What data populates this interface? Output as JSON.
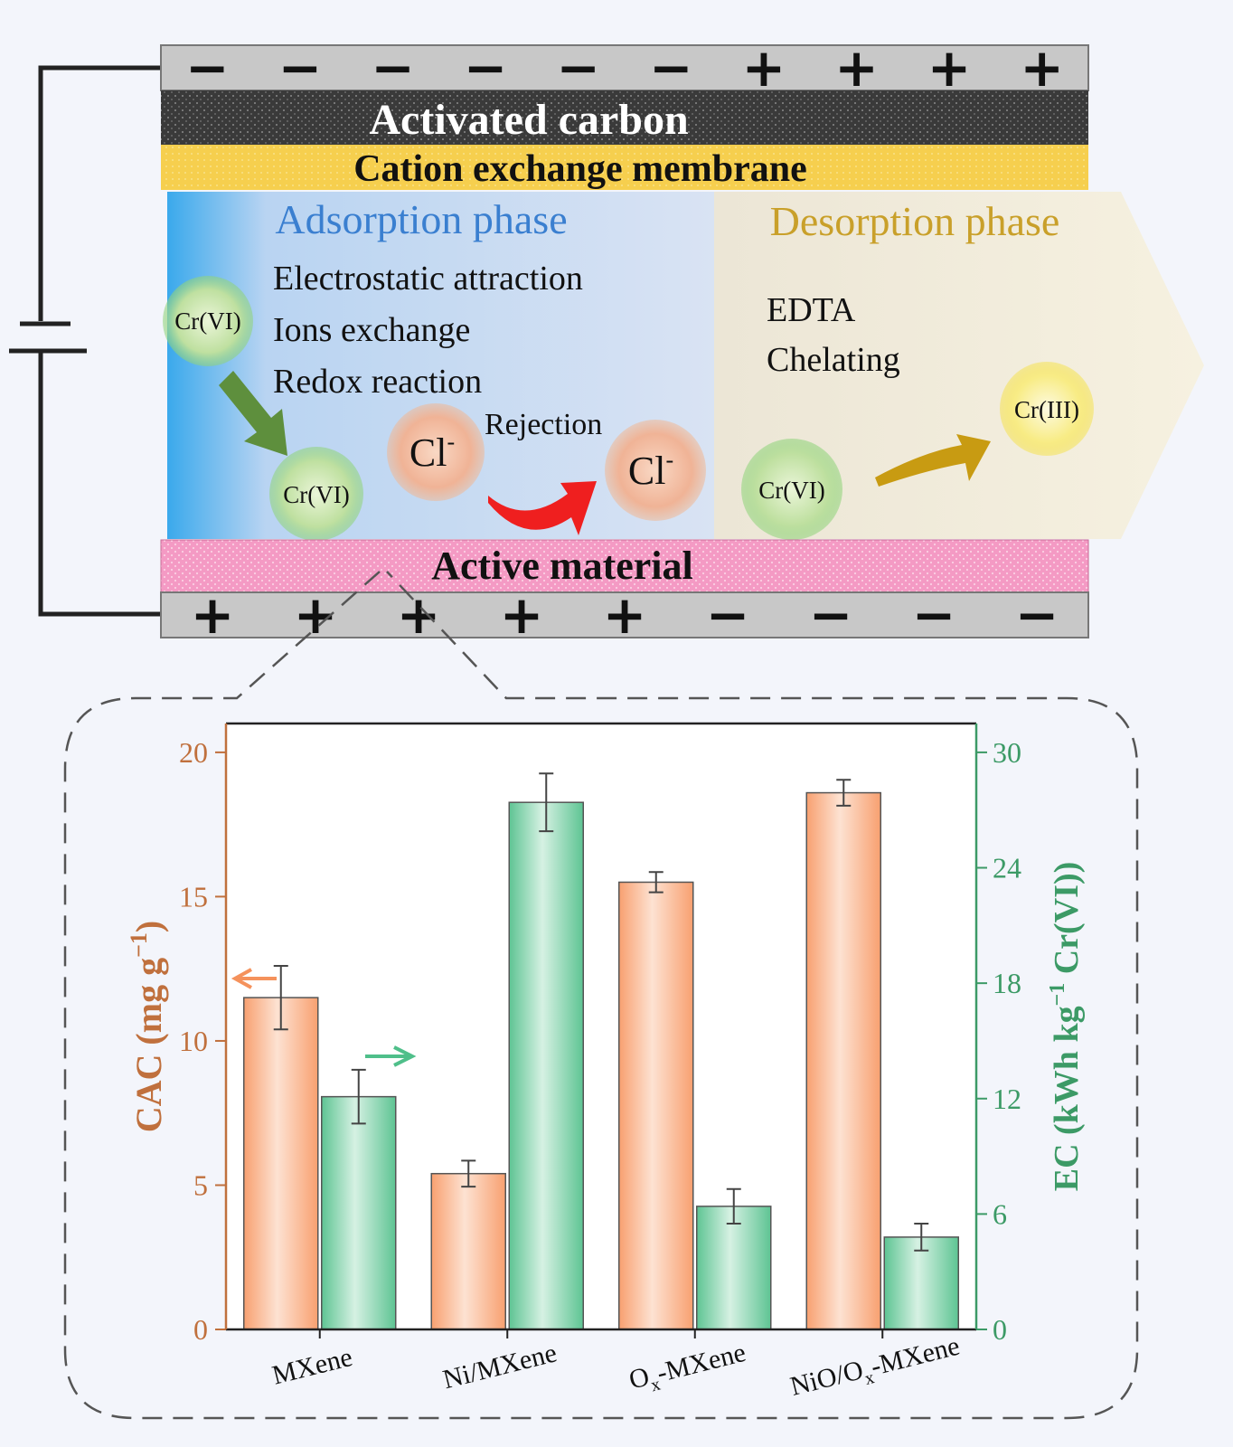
{
  "cell": {
    "top_electrode_signs": [
      "−",
      "−",
      "−",
      "−",
      "−",
      "−",
      "+",
      "+",
      "+",
      "+"
    ],
    "bottom_electrode_signs": [
      "+",
      "+",
      "+",
      "+",
      "+",
      "−",
      "−",
      "−",
      "−"
    ],
    "activated_carbon_label": "Activated carbon",
    "membrane_label": "Cation exchange membrane",
    "active_material_label": "Active material",
    "colors": {
      "electrode": "#c8c8c8",
      "carbon": "#3a3a3a",
      "membrane": "#f6cf4e",
      "active": "#f49ac4",
      "adsorption_edge": "#4ab0ee",
      "adsorption_fill": "#d5e2f5",
      "desorption_fill": "#f4edda"
    }
  },
  "adsorption": {
    "title": "Adsorption phase",
    "mechanisms": [
      "Electrostatic attraction",
      "Ions exchange",
      "Redox reaction"
    ],
    "rejection_label": "Rejection",
    "ions": {
      "crvi": "Cr(VI)",
      "cl": "Cl",
      "cl_sup": "-"
    }
  },
  "desorption": {
    "title": "Desorption phase",
    "agent": [
      "EDTA",
      "Chelating"
    ],
    "ions": {
      "crvi": "Cr(VI)",
      "criii": "Cr(III)"
    }
  },
  "chart_data": {
    "type": "bar",
    "categories": [
      "MXene",
      "Ni/MXene",
      "O<sub>x</sub>-MXene",
      "NiO/O<sub>x</sub>-MXene"
    ],
    "category_labels": [
      {
        "base": "MXene"
      },
      {
        "base": "Ni/MXene"
      },
      {
        "base": "O",
        "sub": "x",
        "rest": "-MXene"
      },
      {
        "base": "NiO/O",
        "sub": "x",
        "rest": "-MXene"
      }
    ],
    "series": [
      {
        "axis": "left",
        "values": [
          11.5,
          5.4,
          15.5,
          18.6
        ],
        "errors": [
          1.1,
          0.45,
          0.35,
          0.45
        ],
        "color": "#f8a070"
      },
      {
        "axis": "right",
        "values": [
          12.1,
          27.4,
          6.4,
          4.8
        ],
        "errors": [
          1.4,
          1.5,
          0.9,
          0.7
        ],
        "color": "#5ec493"
      }
    ],
    "ylabel_left": "CAC (mg g<sup>−1</sup>)",
    "ylabel_right": "EC (kWh kg<sup>−1</sup> Cr(VI))",
    "ylim_left": [
      0,
      21
    ],
    "ylim_right": [
      0,
      31.5
    ],
    "yticks_left": [
      0,
      5,
      10,
      15,
      20
    ],
    "yticks_right": [
      0,
      6,
      12,
      18,
      24,
      30
    ],
    "left_axis_color": "#c0703d",
    "right_axis_color": "#3c9a66"
  }
}
